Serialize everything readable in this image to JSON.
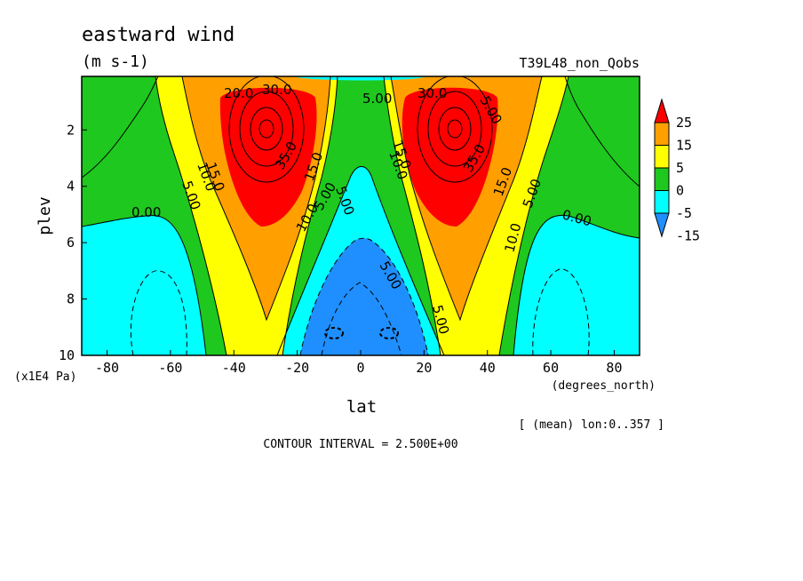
{
  "title": "eastward wind",
  "units": "(m s-1)",
  "run_label": "T39L48_non_Qobs",
  "footer_note": "[ (mean) lon:0..357 ]",
  "contour_interval": "CONTOUR INTERVAL = 2.500E+00",
  "chart_data": {
    "type": "heatmap",
    "title": "eastward wind",
    "subtitle": "(m s-1)",
    "xlabel": "lat",
    "x_unit": "(degrees_north)",
    "ylabel": "plev",
    "y_unit": "(x1E4 Pa)",
    "xlim": [
      -88,
      88
    ],
    "ylim": [
      10,
      0.1
    ],
    "y_inverted": true,
    "x_ticks": [
      "-80",
      "-60",
      "-40",
      "-20",
      "0",
      "20",
      "40",
      "60",
      "80"
    ],
    "y_ticks": [
      "2",
      "4",
      "6",
      "8",
      "10"
    ],
    "contour_interval": 2.5,
    "colorbar": {
      "levels": [
        -15,
        -5,
        0,
        5,
        15,
        25
      ],
      "tick_labels": [
        "25",
        "15",
        "5",
        "0",
        "-5",
        "-15"
      ],
      "colors": [
        "#1f8fff",
        "#00ffff",
        "#1ec81e",
        "#ffff00",
        "#ffa000",
        "#ff0000"
      ],
      "extend": "both"
    },
    "features": [
      {
        "name": "southern jet core",
        "lat": -30,
        "plev": 2,
        "value": 37.5
      },
      {
        "name": "northern jet core",
        "lat": 30,
        "plev": 2,
        "value": 37.5
      },
      {
        "name": "equatorial easterly minimum (south)",
        "lat": -8,
        "plev": 9.2,
        "value": -10
      },
      {
        "name": "equatorial easterly minimum (north)",
        "lat": 8,
        "plev": 9.2,
        "value": -10
      }
    ],
    "contour_labels": [
      "20.0",
      "30.0",
      "5.00",
      "30.0",
      "35.0",
      "15.0",
      "10.0",
      "5.00",
      "0.00",
      "15.0",
      "10.0",
      "5.00",
      "15.0",
      "5.00",
      "15.0",
      "10.0",
      "5.00",
      "5.00",
      "10.0",
      "0.00",
      "35.0",
      "5.00",
      "5.00"
    ],
    "legend_position": "right"
  }
}
